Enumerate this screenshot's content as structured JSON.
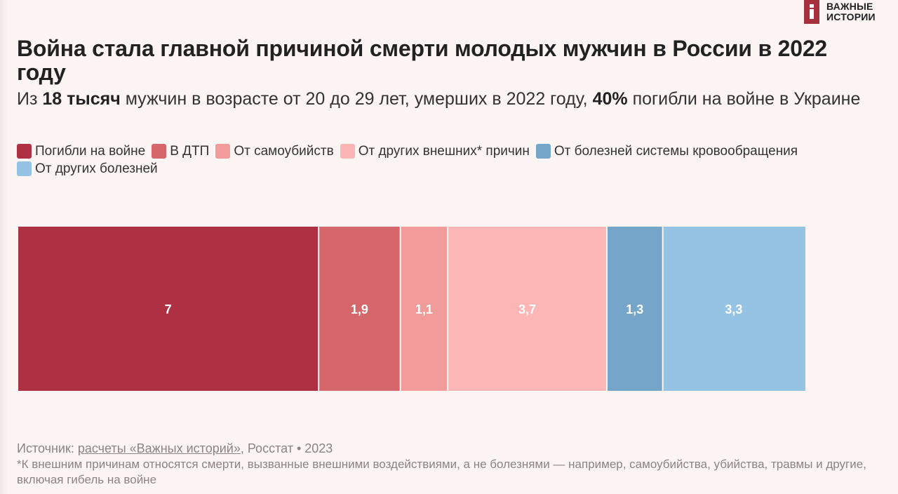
{
  "logo": {
    "line1": "ВАЖНЫЕ",
    "line2": "ИСТОРИИ",
    "color": "#a8313f"
  },
  "header": {
    "title": "Война стала главной причиной смерти молодых мужчин в России в 2022 году",
    "subtitle_parts": [
      {
        "text": "Из ",
        "bold": false
      },
      {
        "text": "18 тысяч",
        "bold": true
      },
      {
        "text": " мужчин в возрасте от 20 до 29 лет, умерших в 2022 году, ",
        "bold": false
      },
      {
        "text": "40%",
        "bold": true
      },
      {
        "text": " погибли на войне в Украине",
        "bold": false
      }
    ]
  },
  "chart_data": {
    "type": "bar",
    "orientation": "horizontal-stacked",
    "title": "Война стала главной причиной смерти молодых мужчин в России в 2022 году",
    "unit": "тысяч человек",
    "categories": [
      "Мужчины 20–29 лет, умершие в 2022 году"
    ],
    "series": [
      {
        "name": "Погибли на войне",
        "values": [
          7
        ],
        "label": "7",
        "color": "#ad3142"
      },
      {
        "name": "В ДТП",
        "values": [
          1.9
        ],
        "label": "1,9",
        "color": "#d5666a"
      },
      {
        "name": "От самоубийств",
        "values": [
          1.1
        ],
        "label": "1,1",
        "color": "#f19b9b"
      },
      {
        "name": "От других внешних* причин",
        "values": [
          3.7
        ],
        "label": "3,7",
        "color": "#fbb6b5"
      },
      {
        "name": "От болезней системы кровообращения",
        "values": [
          1.3
        ],
        "label": "1,3",
        "color": "#75a5c9"
      },
      {
        "name": "От других болезней",
        "values": [
          3.3
        ],
        "label": "3,3",
        "color": "#95c3e3"
      }
    ],
    "total": 18.3,
    "legend_position": "top",
    "grid": false
  },
  "footer": {
    "source_prefix": "Источник: ",
    "source_link": "расчеты «Важных историй»",
    "source_suffix": ", Росстат • 2023",
    "note": "*К внешним причинам относятся смерти, вызванные внешними воздействиями, а не болезнями — например, самоубийства, убийства, травмы и другие, включая гибель на войне"
  }
}
